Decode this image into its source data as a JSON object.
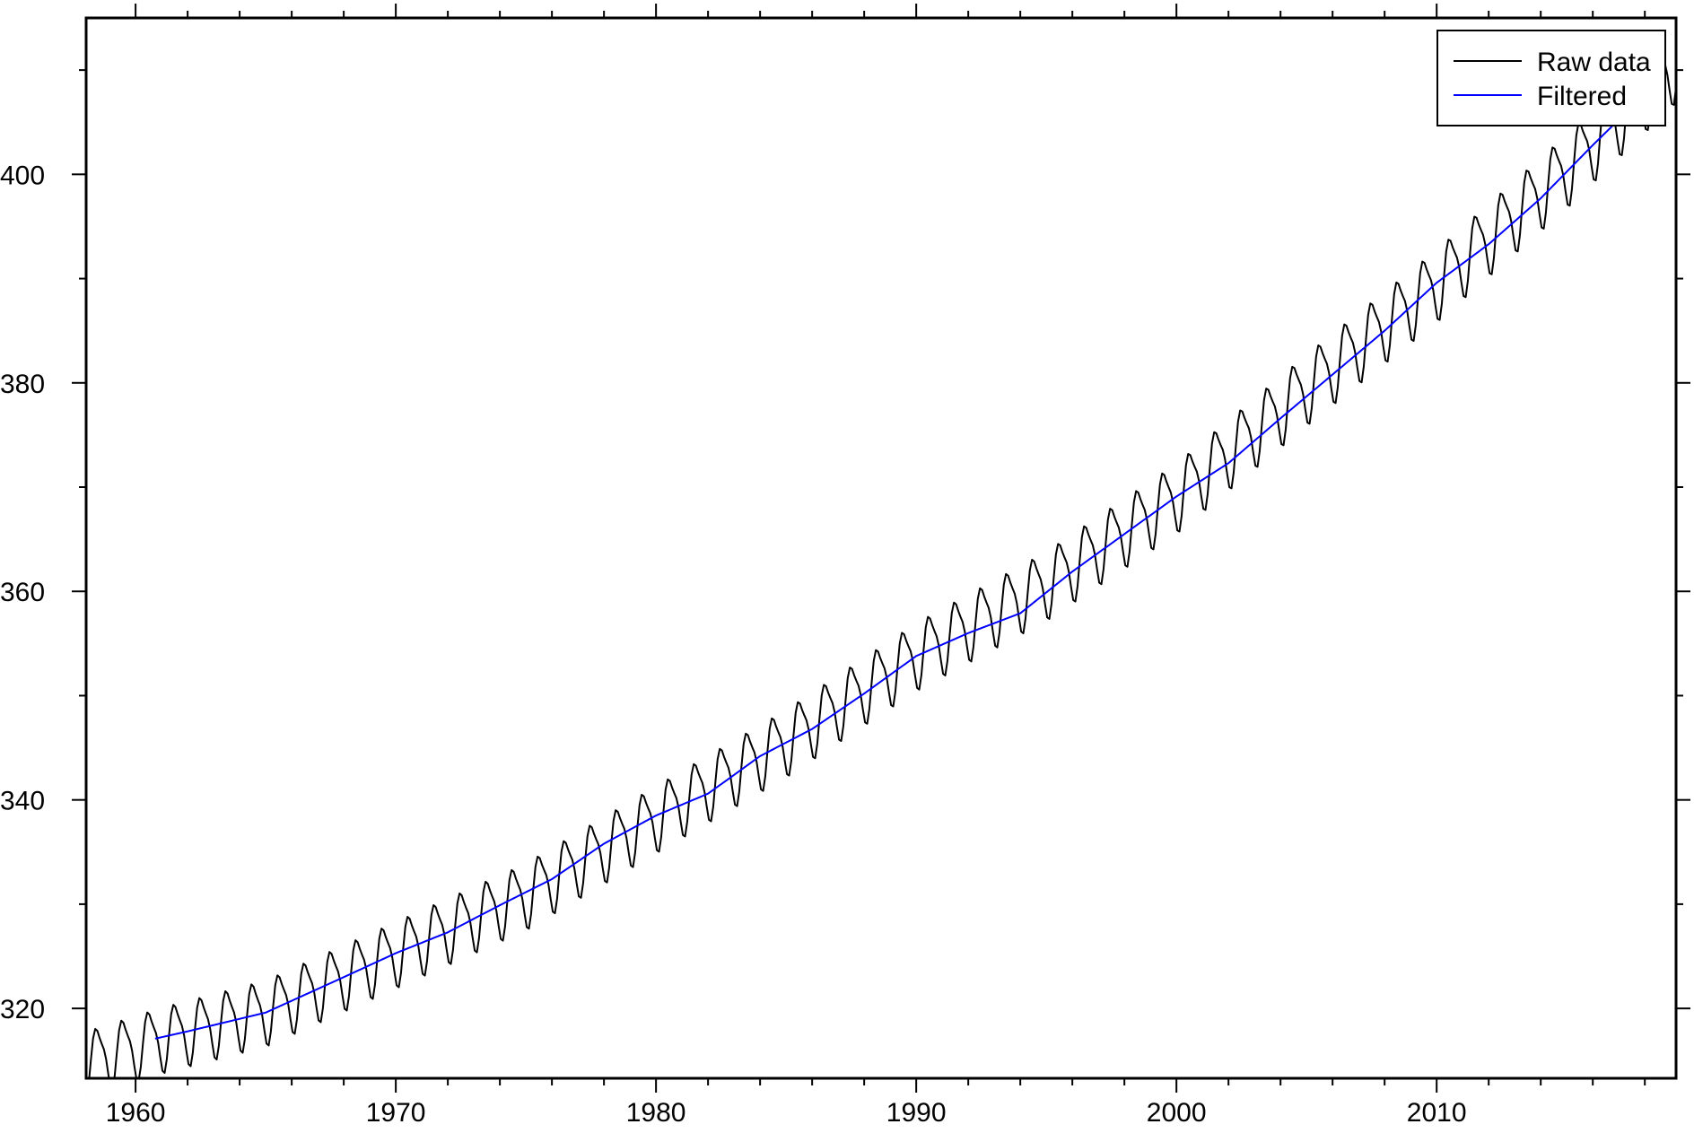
{
  "chart_data": {
    "type": "line",
    "title": "",
    "xlabel": "",
    "ylabel": "",
    "xlim": [
      1958.1,
      2019.2
    ],
    "ylim": [
      313.3,
      415.0
    ],
    "x_ticks": [
      1960,
      1970,
      1980,
      1990,
      2000,
      2010
    ],
    "x_tick_labels": [
      "1960",
      "1970",
      "1980",
      "1990",
      "2000",
      "2010"
    ],
    "y_ticks": [
      320,
      340,
      360,
      380,
      400
    ],
    "y_tick_labels": [
      "320",
      "340",
      "360",
      "380",
      "400"
    ],
    "x_minor_step": 2,
    "y_minor_step": 10,
    "grid": false,
    "legend_position": "top-right",
    "series": [
      {
        "name": "Raw data",
        "color": "#000000",
        "kind": "seasonal-monthly",
        "x_start": 1958.2,
        "x_end": 2019.2,
        "trend_points": [
          [
            1958.2,
            315.0
          ],
          [
            1961,
            317.2
          ],
          [
            1965,
            319.8
          ],
          [
            1970,
            325.4
          ],
          [
            1975,
            331.0
          ],
          [
            1980,
            338.4
          ],
          [
            1985,
            345.7
          ],
          [
            1990,
            354.0
          ],
          [
            1995,
            360.8
          ],
          [
            2000,
            369.2
          ],
          [
            2005,
            379.6
          ],
          [
            2010,
            389.6
          ],
          [
            2015,
            400.6
          ],
          [
            2019.2,
            410.8
          ]
        ],
        "amplitude_points": [
          [
            1958.2,
            2.9
          ],
          [
            1990,
            3.0
          ],
          [
            2019.2,
            3.3
          ]
        ]
      },
      {
        "name": "Filtered",
        "color": "#0000ff",
        "kind": "smooth",
        "x_start": 1960.75,
        "x_end": 2016.9,
        "trend_points": [
          [
            1960.75,
            317.1
          ],
          [
            1962,
            317.8
          ],
          [
            1965,
            319.6
          ],
          [
            1968,
            323.0
          ],
          [
            1970,
            325.3
          ],
          [
            1972,
            327.3
          ],
          [
            1974,
            329.9
          ],
          [
            1976,
            332.4
          ],
          [
            1978,
            335.8
          ],
          [
            1980,
            338.5
          ],
          [
            1982,
            340.6
          ],
          [
            1984,
            344.2
          ],
          [
            1986,
            346.8
          ],
          [
            1988,
            350.2
          ],
          [
            1990,
            353.8
          ],
          [
            1992,
            356.0
          ],
          [
            1994,
            357.9
          ],
          [
            1996,
            361.9
          ],
          [
            1998,
            365.5
          ],
          [
            2000,
            369.1
          ],
          [
            2002,
            372.3
          ],
          [
            2004,
            376.6
          ],
          [
            2006,
            380.8
          ],
          [
            2008,
            385.0
          ],
          [
            2010,
            389.6
          ],
          [
            2012,
            393.3
          ],
          [
            2014,
            397.7
          ],
          [
            2016,
            402.8
          ],
          [
            2016.9,
            405.0
          ]
        ]
      }
    ]
  }
}
